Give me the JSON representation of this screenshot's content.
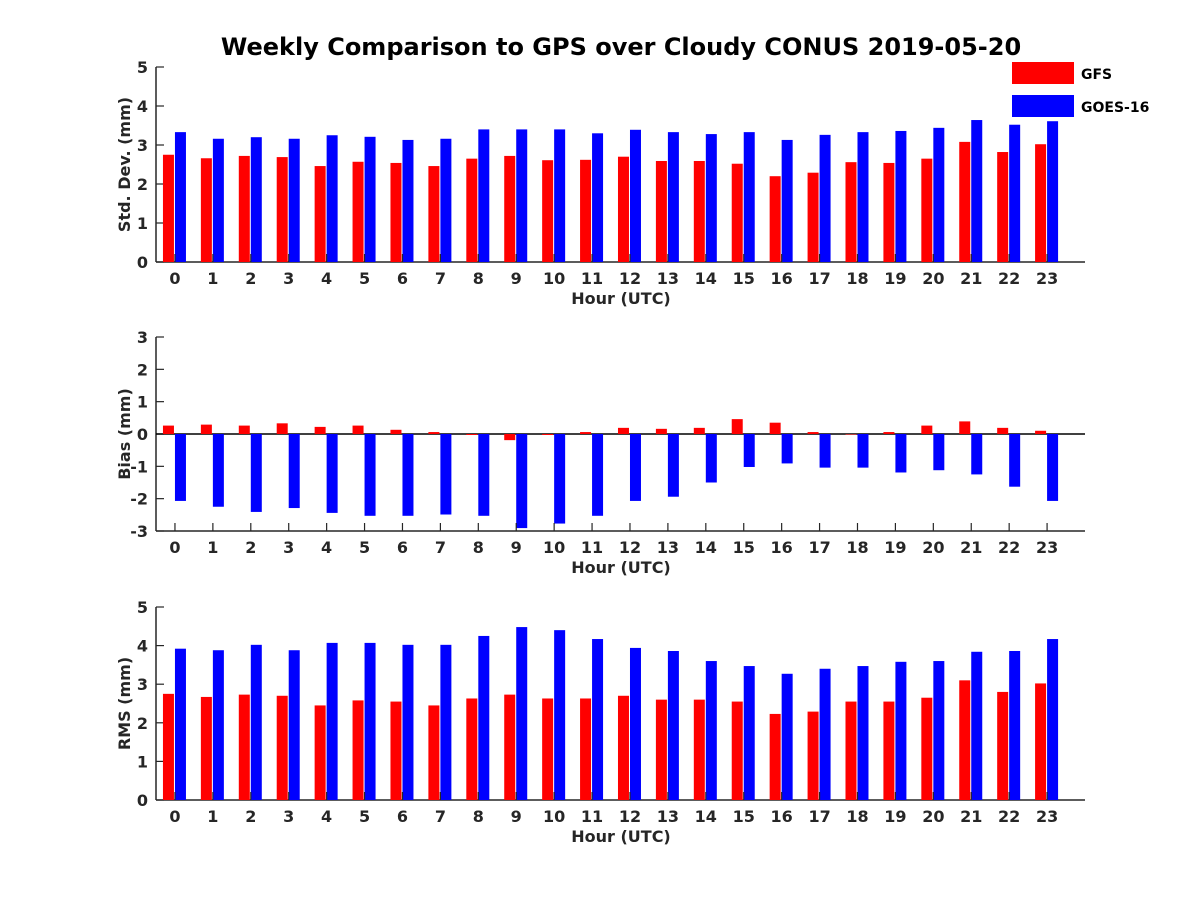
{
  "title": "Weekly Comparison to GPS over Cloudy CONUS 2019-05-20",
  "colors": {
    "GFS": "#ff0000",
    "GOES-16": "#0000ff"
  },
  "legend": {
    "placement": "top-right",
    "entries": [
      "GFS",
      "GOES-16"
    ]
  },
  "chart_data": [
    {
      "type": "bar",
      "categories": [
        "0",
        "1",
        "2",
        "3",
        "4",
        "5",
        "6",
        "7",
        "8",
        "9",
        "10",
        "11",
        "12",
        "13",
        "14",
        "15",
        "16",
        "17",
        "18",
        "19",
        "20",
        "21",
        "22",
        "23"
      ],
      "xlabel": "Hour (UTC)",
      "ylabel": "Std. Dev. (mm)",
      "ylim": [
        0,
        5
      ],
      "yticks": [
        0,
        1,
        2,
        3,
        4,
        5
      ],
      "grid": false,
      "series": [
        {
          "name": "GFS",
          "values": [
            2.75,
            2.66,
            2.72,
            2.69,
            2.46,
            2.57,
            2.54,
            2.46,
            2.65,
            2.72,
            2.61,
            2.62,
            2.7,
            2.59,
            2.59,
            2.52,
            2.2,
            2.29,
            2.56,
            2.54,
            2.65,
            3.08,
            2.82,
            3.02
          ]
        },
        {
          "name": "GOES-16",
          "values": [
            3.33,
            3.16,
            3.2,
            3.16,
            3.25,
            3.21,
            3.13,
            3.16,
            3.4,
            3.4,
            3.4,
            3.3,
            3.39,
            3.33,
            3.28,
            3.33,
            3.13,
            3.26,
            3.33,
            3.36,
            3.44,
            3.64,
            3.52,
            3.61
          ]
        }
      ]
    },
    {
      "type": "bar",
      "categories": [
        "0",
        "1",
        "2",
        "3",
        "4",
        "5",
        "6",
        "7",
        "8",
        "9",
        "10",
        "11",
        "12",
        "13",
        "14",
        "15",
        "16",
        "17",
        "18",
        "19",
        "20",
        "21",
        "22",
        "23"
      ],
      "xlabel": "Hour (UTC)",
      "ylabel": "Bias (mm)",
      "ylim": [
        -3,
        3
      ],
      "yticks": [
        -3,
        -2,
        -1,
        0,
        1,
        2,
        3
      ],
      "grid": false,
      "zero_line": true,
      "series": [
        {
          "name": "GFS",
          "values": [
            0.26,
            0.29,
            0.26,
            0.33,
            0.22,
            0.26,
            0.13,
            0.06,
            -0.03,
            -0.19,
            -0.03,
            0.06,
            0.19,
            0.16,
            0.19,
            0.46,
            0.35,
            0.06,
            0.0,
            0.06,
            0.26,
            0.39,
            0.19,
            0.1
          ]
        },
        {
          "name": "GOES-16",
          "values": [
            -2.07,
            -2.25,
            -2.41,
            -2.29,
            -2.44,
            -2.53,
            -2.53,
            -2.49,
            -2.53,
            -2.91,
            -2.77,
            -2.53,
            -2.07,
            -1.94,
            -1.5,
            -1.02,
            -0.91,
            -1.04,
            -1.04,
            -1.19,
            -1.12,
            -1.25,
            -1.63,
            -2.07
          ]
        }
      ]
    },
    {
      "type": "bar",
      "categories": [
        "0",
        "1",
        "2",
        "3",
        "4",
        "5",
        "6",
        "7",
        "8",
        "9",
        "10",
        "11",
        "12",
        "13",
        "14",
        "15",
        "16",
        "17",
        "18",
        "19",
        "20",
        "21",
        "22",
        "23"
      ],
      "xlabel": "Hour (UTC)",
      "ylabel": "RMS (mm)",
      "ylim": [
        0,
        5
      ],
      "yticks": [
        0,
        1,
        2,
        3,
        4,
        5
      ],
      "grid": false,
      "series": [
        {
          "name": "GFS",
          "values": [
            2.75,
            2.67,
            2.73,
            2.7,
            2.45,
            2.58,
            2.55,
            2.45,
            2.63,
            2.73,
            2.63,
            2.63,
            2.7,
            2.6,
            2.6,
            2.55,
            2.23,
            2.29,
            2.55,
            2.55,
            2.65,
            3.1,
            2.8,
            3.02
          ]
        },
        {
          "name": "GOES-16",
          "values": [
            3.92,
            3.88,
            4.02,
            3.88,
            4.07,
            4.07,
            4.02,
            4.02,
            4.25,
            4.48,
            4.4,
            4.17,
            3.94,
            3.86,
            3.6,
            3.47,
            3.27,
            3.4,
            3.47,
            3.58,
            3.6,
            3.84,
            3.86,
            4.17
          ]
        }
      ]
    }
  ]
}
